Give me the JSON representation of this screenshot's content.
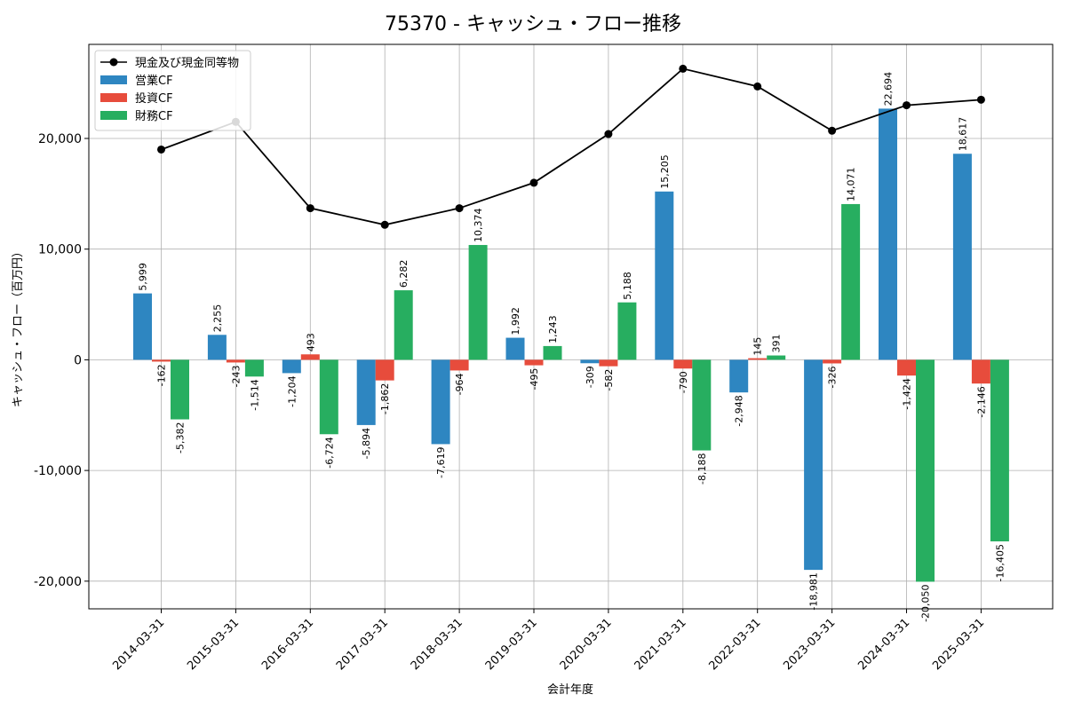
{
  "chart_data": {
    "type": "bar",
    "title": "75370 - キャッシュ・フロー推移",
    "xlabel": "会計年度",
    "ylabel": "キャッシュ・フロー（百万円）",
    "ylim": [
      -22500,
      28500
    ],
    "yticks": [
      -20000,
      -10000,
      0,
      10000,
      20000
    ],
    "ytick_labels": [
      "-20,000",
      "-10,000",
      "0",
      "10,000",
      "20,000"
    ],
    "grid": true,
    "legend_position": "top-left",
    "categories": [
      "2014-03-31",
      "2015-03-31",
      "2016-03-31",
      "2017-03-31",
      "2018-03-31",
      "2019-03-31",
      "2020-03-31",
      "2021-03-31",
      "2022-03-31",
      "2023-03-31",
      "2024-03-31",
      "2025-03-31"
    ],
    "line": {
      "name": "現金及び現金同等物",
      "color": "#000000",
      "values": [
        19000,
        21500,
        13700,
        12200,
        13700,
        16000,
        20400,
        26300,
        24700,
        20700,
        23000,
        23500
      ]
    },
    "series": [
      {
        "name": "営業CF",
        "color": "#2e86c1",
        "values": [
          5999,
          2255,
          -1204,
          -5894,
          -7619,
          1992,
          -309,
          15205,
          -2948,
          -18981,
          22694,
          18617
        ],
        "labels": [
          "5,999",
          "2,255",
          "-1,204",
          "-5,894",
          "-7,619",
          "1,992",
          "-309",
          "15,205",
          "-2,948",
          "-18,981",
          "22,694",
          "18,617"
        ]
      },
      {
        "name": "投資CF",
        "color": "#e74c3c",
        "values": [
          -162,
          -243,
          493,
          -1862,
          -964,
          -495,
          -582,
          -790,
          145,
          -326,
          -1424,
          -2146
        ],
        "labels": [
          "-162",
          "-243",
          "493",
          "-1,862",
          "-964",
          "-495",
          "-582",
          "-790",
          "145",
          "-326",
          "-1,424",
          "-2,146"
        ]
      },
      {
        "name": "財務CF",
        "color": "#27ae60",
        "values": [
          -5382,
          -1514,
          -6724,
          6282,
          10374,
          1243,
          5188,
          -8188,
          391,
          14071,
          -20050,
          -16405
        ],
        "labels": [
          "-5,382",
          "-1,514",
          "-6,724",
          "6,282",
          "10,374",
          "1,243",
          "5,188",
          "-8,188",
          "391",
          "14,071",
          "-20,050",
          "-16,405"
        ]
      }
    ]
  }
}
